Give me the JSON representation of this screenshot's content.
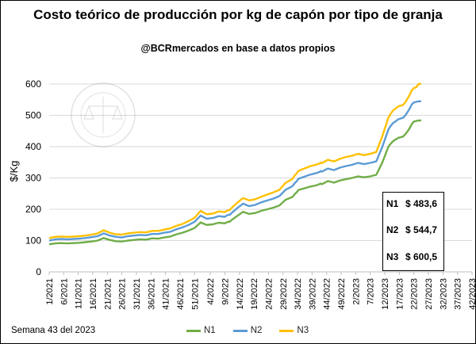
{
  "chart_data": {
    "type": "line",
    "title": "Costo teórico de producción por kg de capón por tipo de granja",
    "subtitle": "@BCRmercados en base a datos propios",
    "ylabel": "$/Kg",
    "ylim": [
      0,
      600
    ],
    "yticks": [
      "0",
      "100",
      "200",
      "300",
      "400",
      "500",
      "600"
    ],
    "grid": true,
    "legend": "bottom",
    "footnote": "Semana 43 del 2023",
    "x": [
      0,
      5,
      10,
      15,
      20,
      25,
      30,
      35,
      40,
      45,
      50,
      55,
      60,
      65,
      70,
      75,
      80,
      85,
      90,
      95,
      100,
      105,
      110,
      115,
      120,
      125,
      130,
      135,
      140,
      145,
      147,
      148,
      149,
      150,
      155,
      160,
      165,
      170,
      175,
      180,
      185,
      190,
      195,
      200,
      201,
      202,
      203,
      204,
      205,
      206,
      210,
      215,
      220,
      223,
      224,
      225,
      230,
      235,
      240,
      245,
      250,
      255,
      260,
      265,
      270,
      275,
      280,
      282,
      284,
      286,
      287,
      288,
      290,
      292,
      294,
      296,
      298,
      299,
      300,
      301,
      303,
      305,
      307
    ],
    "xticks": [
      {
        "label": "1/2021",
        "x": 0
      },
      {
        "label": "6/2021",
        "x": 12
      },
      {
        "label": "11/2021",
        "x": 24
      },
      {
        "label": "16/2021",
        "x": 36
      },
      {
        "label": "21/2021",
        "x": 48
      },
      {
        "label": "26/2021",
        "x": 60
      },
      {
        "label": "31/2021",
        "x": 72
      },
      {
        "label": "36/2021",
        "x": 84
      },
      {
        "label": "41/2021",
        "x": 96
      },
      {
        "label": "46/2021",
        "x": 108
      },
      {
        "label": "51/2021",
        "x": 120
      },
      {
        "label": "4/2022",
        "x": 133
      },
      {
        "label": "9/2022",
        "x": 145
      },
      {
        "label": "14/2022",
        "x": 157
      },
      {
        "label": "19/2022",
        "x": 169
      },
      {
        "label": "24/2022",
        "x": 181
      },
      {
        "label": "29/2022",
        "x": 193
      },
      {
        "label": "34/2022",
        "x": 205
      },
      {
        "label": "39/2022",
        "x": 217
      },
      {
        "label": "44/2022",
        "x": 229
      },
      {
        "label": "49/2022",
        "x": 241
      },
      {
        "label": "2/2023",
        "x": 253
      },
      {
        "label": "7/2023",
        "x": 265
      },
      {
        "label": "12/2023",
        "x": 277
      },
      {
        "label": "17/2023",
        "x": 289
      },
      {
        "label": "22/2023",
        "x": 301
      },
      {
        "label": "27/2023",
        "x": 313
      },
      {
        "label": "32/2023",
        "x": 325
      },
      {
        "label": "37/2023",
        "x": 337
      },
      {
        "label": "42/2023",
        "x": 349
      }
    ],
    "series": [
      {
        "name": "N1",
        "color": "#70ad47",
        "values": [
          88,
          91,
          92,
          91,
          92,
          93,
          95,
          97,
          100,
          108,
          102,
          98,
          97,
          100,
          102,
          104,
          103,
          107,
          106,
          110,
          113,
          120,
          125,
          132,
          140,
          158,
          150,
          152,
          157,
          155,
          159,
          160,
          160,
          164,
          178,
          192,
          185,
          188,
          195,
          200,
          205,
          212,
          230,
          238,
          240,
          245,
          250,
          253,
          258,
          262,
          266,
          272,
          276,
          280,
          282,
          280,
          290,
          285,
          292,
          296,
          300,
          305,
          302,
          305,
          310,
          350,
          400,
          410,
          418,
          423,
          425,
          428,
          430,
          432,
          440,
          450,
          462,
          470,
          476,
          480,
          482,
          483.6,
          483.6
        ]
      },
      {
        "name": "N2",
        "color": "#5b9bd5",
        "values": [
          100,
          104,
          105,
          104,
          105,
          106,
          108,
          111,
          114,
          123,
          116,
          112,
          110,
          114,
          116,
          118,
          117,
          121,
          121,
          125,
          128,
          136,
          142,
          150,
          160,
          180,
          170,
          172,
          178,
          176,
          181,
          182,
          182,
          186,
          203,
          218,
          210,
          214,
          222,
          228,
          234,
          242,
          262,
          272,
          275,
          280,
          285,
          288,
          294,
          298,
          303,
          310,
          315,
          319,
          322,
          320,
          330,
          325,
          333,
          338,
          342,
          348,
          344,
          348,
          353,
          400,
          455,
          467,
          476,
          481,
          484,
          487,
          490,
          492,
          500,
          512,
          525,
          533,
          538,
          541,
          543,
          544.7,
          544.7
        ]
      },
      {
        "name": "N3",
        "color": "#ffc000",
        "values": [
          108,
          112,
          113,
          112,
          113,
          114,
          116,
          119,
          123,
          133,
          125,
          120,
          119,
          123,
          125,
          127,
          126,
          131,
          131,
          135,
          139,
          147,
          153,
          162,
          173,
          195,
          184,
          186,
          193,
          191,
          196,
          197,
          197,
          202,
          220,
          236,
          228,
          232,
          240,
          247,
          254,
          262,
          284,
          295,
          298,
          304,
          310,
          313,
          319,
          323,
          329,
          337,
          342,
          346,
          349,
          347,
          358,
          353,
          361,
          367,
          371,
          377,
          373,
          377,
          383,
          434,
          493,
          506,
          516,
          522,
          525,
          528,
          531,
          533,
          542,
          555,
          569,
          578,
          583,
          587,
          590,
          600.5,
          600.5
        ]
      }
    ],
    "callout": [
      {
        "label": "N1",
        "value": "$ 483,6"
      },
      {
        "label": "N2",
        "value": "$ 544,7"
      },
      {
        "label": "N3",
        "value": "$ 600,5"
      }
    ]
  }
}
